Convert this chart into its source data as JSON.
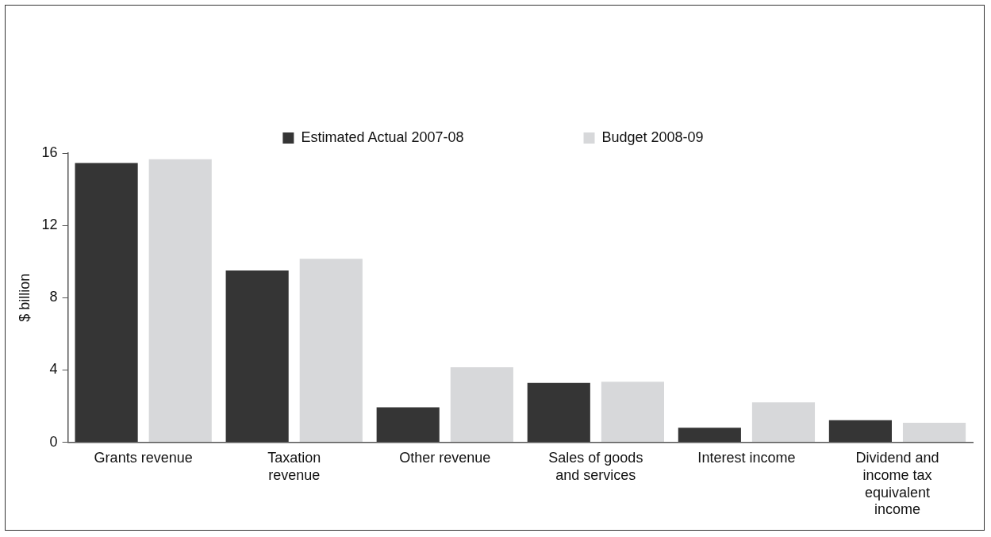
{
  "chart_data": {
    "type": "bar",
    "ylabel": "$ billion",
    "categories": [
      "Grants revenue",
      "Taxation revenue",
      "Other revenue",
      "Sales of goods and services",
      "Interest income",
      "Dividend and income tax equivalent income"
    ],
    "series": [
      {
        "name": "Estimated Actual 2007-08",
        "color": "#353535",
        "values": [
          15.45,
          9.5,
          1.94,
          3.28,
          0.8,
          1.22
        ]
      },
      {
        "name": "Budget 2008-09",
        "color": "#d7d8da",
        "values": [
          15.66,
          10.15,
          4.15,
          3.35,
          2.21,
          1.08
        ]
      }
    ],
    "ylim": [
      0,
      16
    ],
    "yticks": [
      0,
      4,
      8,
      12,
      16
    ],
    "grid": false,
    "legend": "top"
  }
}
